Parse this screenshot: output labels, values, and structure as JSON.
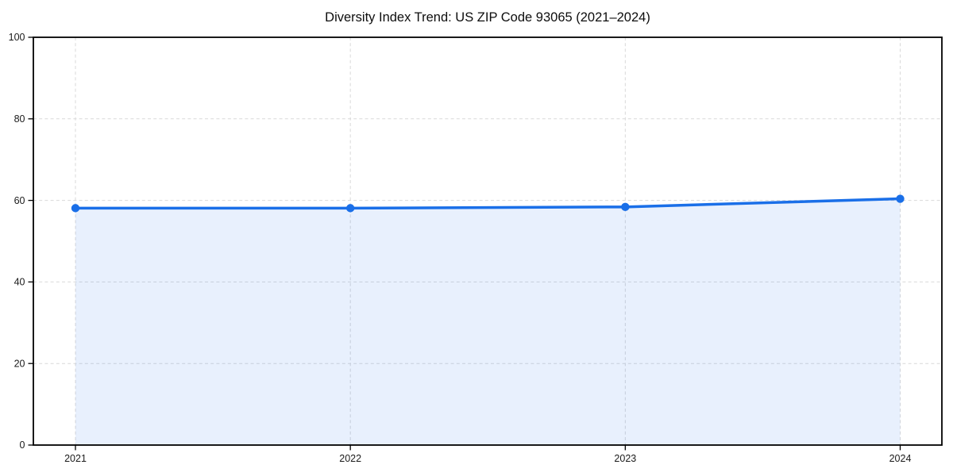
{
  "page": {
    "background_color": "#ffffff"
  },
  "chart_data": {
    "type": "area",
    "title": "Diversity Index Trend: US ZIP Code 93065 (2021–2024)",
    "x": [
      "2021",
      "2022",
      "2023",
      "2024"
    ],
    "series": [
      {
        "name": "Diversity Index",
        "values": [
          58.1,
          58.1,
          58.4,
          60.4
        ]
      }
    ],
    "xlabel": "",
    "ylabel": "",
    "ylim": [
      0,
      100
    ],
    "yticks": [
      0,
      20,
      40,
      60,
      80,
      100
    ],
    "grid": true,
    "grid_style": "dashed",
    "legend_position": "none",
    "line_color": "#1a6fe8",
    "marker": "circle",
    "marker_color": "#1a6fe8",
    "fill_color": "#1a6fe8",
    "fill_opacity": 0.1,
    "grid_color": "#d9d9d9",
    "axis_color": "#000000",
    "tick_label_color": "#1a1a1a",
    "title_color": "#0d0d0d"
  }
}
